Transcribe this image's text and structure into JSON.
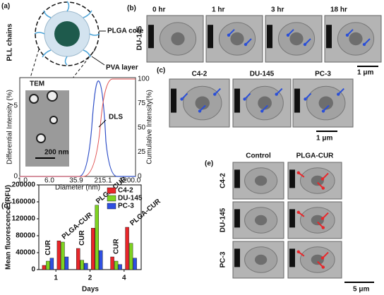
{
  "panel_a": {
    "label": "(a)",
    "pll": "PLL chains",
    "core": "PLGA core",
    "pva": "PVA layer",
    "tem": "TEM",
    "dls": "DLS",
    "scale": "200 nm",
    "y_left": "Differential Intensity (%)",
    "y_right": "Cumulative Intensity(%)",
    "x_label": "Diameter (nm)",
    "x_ticks": [
      "1.0",
      "6.0",
      "35.9",
      "215.1",
      "1200.0"
    ],
    "y_left_ticks": [
      "0",
      "5"
    ],
    "y_right_ticks": [
      "0",
      "25",
      "50",
      "75",
      "100"
    ]
  },
  "panel_b": {
    "label": "(b)",
    "row": "DU-145",
    "times": [
      "0 hr",
      "1 hr",
      "3 hr",
      "18 hr"
    ],
    "scale": "1 μm"
  },
  "panel_c": {
    "label": "(c)",
    "cells": [
      "C4-2",
      "DU-145",
      "PC-3"
    ],
    "scale": "1 μm"
  },
  "panel_e": {
    "label": "(e)",
    "columns": [
      "Control",
      "PLGA-CUR"
    ],
    "rows": [
      "C4-2",
      "DU-145",
      "PC-3"
    ],
    "scale": "5 μm"
  },
  "chart_data": {
    "type": "grouped_bar",
    "label": "(d)",
    "y_label": "Mean fluorescence (RFU)",
    "x_label": "Days",
    "categories": [
      "1",
      "2",
      "4"
    ],
    "group_labels": [
      "CUR",
      "PLGA-CUR"
    ],
    "series": [
      {
        "name": "C4-2",
        "color": "#e8262a",
        "values": [
          [
            10000,
            68000
          ],
          [
            50000,
            98000
          ],
          [
            30000,
            100000
          ]
        ]
      },
      {
        "name": "DU-145",
        "color": "#7ed321",
        "values": [
          [
            20000,
            65000
          ],
          [
            22000,
            152000
          ],
          [
            20000,
            62000
          ]
        ]
      },
      {
        "name": "PC-3",
        "color": "#2f4fe0",
        "values": [
          [
            27000,
            30000
          ],
          [
            15000,
            45000
          ],
          [
            12000,
            27000
          ]
        ]
      }
    ],
    "ylim": [
      0,
      200000
    ],
    "yticks": [
      0,
      40000,
      80000,
      120000,
      160000,
      200000
    ]
  }
}
